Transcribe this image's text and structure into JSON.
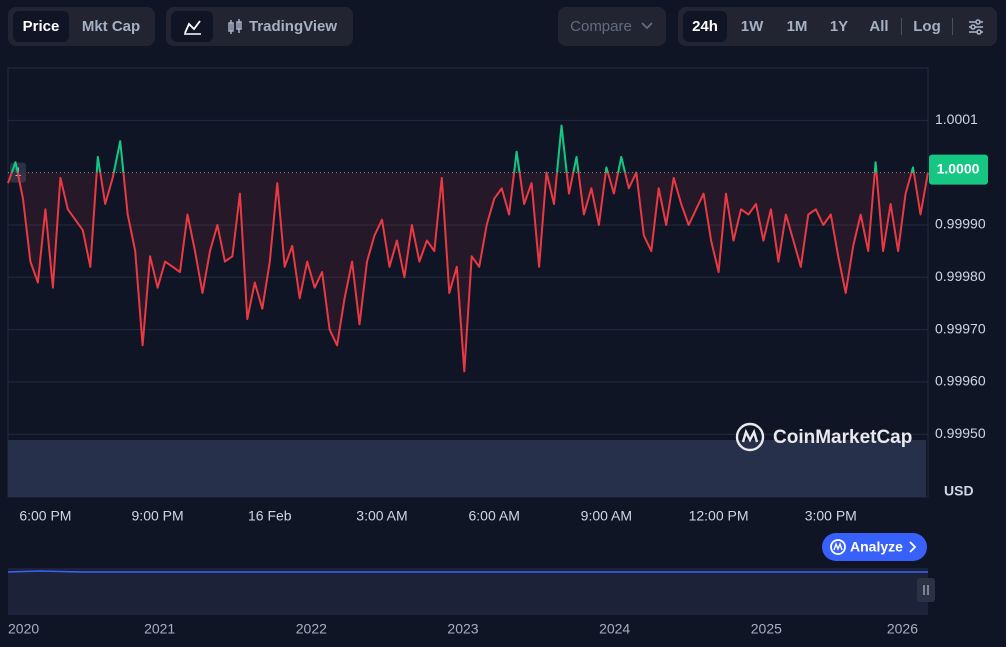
{
  "toolbar": {
    "metrics": [
      "Price",
      "Mkt Cap"
    ],
    "chart_mode": "TradingView",
    "compare": "Compare",
    "ranges": [
      "24h",
      "1W",
      "1M",
      "1Y",
      "All"
    ],
    "log": "Log"
  },
  "chart_data": {
    "type": "line",
    "values": [
      0.99998,
      1.00002,
      0.99995,
      0.99983,
      0.99979,
      0.99993,
      0.99978,
      0.99999,
      0.99993,
      0.99991,
      0.99989,
      0.99982,
      1.00003,
      0.99994,
      0.99999,
      1.00006,
      0.99992,
      0.99985,
      0.99967,
      0.99984,
      0.99978,
      0.99983,
      0.99982,
      0.99981,
      0.99992,
      0.99985,
      0.99977,
      0.99985,
      0.9999,
      0.99983,
      0.99984,
      0.99996,
      0.99972,
      0.99979,
      0.99974,
      0.99983,
      0.99998,
      0.99982,
      0.99986,
      0.99976,
      0.99983,
      0.99978,
      0.99981,
      0.9997,
      0.99967,
      0.99976,
      0.99983,
      0.99971,
      0.99983,
      0.99988,
      0.99991,
      0.99982,
      0.99987,
      0.9998,
      0.9999,
      0.99983,
      0.99987,
      0.99985,
      0.99999,
      0.99977,
      0.99982,
      0.99962,
      0.99984,
      0.99982,
      0.9999,
      0.99995,
      0.99997,
      0.99992,
      1.00004,
      0.99994,
      0.99998,
      0.99982,
      1.0,
      0.99994,
      1.00009,
      0.99996,
      1.00003,
      0.99992,
      0.99997,
      0.9999,
      1.00001,
      0.99996,
      1.00003,
      0.99997,
      1.0,
      0.99988,
      0.99985,
      0.99997,
      0.9999,
      0.99999,
      0.99994,
      0.9999,
      0.99993,
      0.99996,
      0.99987,
      0.99981,
      0.99996,
      0.99987,
      0.99993,
      0.99992,
      0.99994,
      0.99987,
      0.99993,
      0.99983,
      0.99992,
      0.99987,
      0.99982,
      0.99992,
      0.99993,
      0.9999,
      0.99992,
      0.99984,
      0.99977,
      0.99986,
      0.99992,
      0.99985,
      1.00002,
      0.99985,
      0.99994,
      0.99985,
      0.99996,
      1.00001,
      0.99992,
      1.0
    ],
    "xlim": [
      0,
      123
    ],
    "xticks": [
      {
        "value": 5,
        "label": "6:00 PM"
      },
      {
        "value": 20,
        "label": "9:00 PM"
      },
      {
        "value": 35,
        "label": "16 Feb"
      },
      {
        "value": 50,
        "label": "3:00 AM"
      },
      {
        "value": 65,
        "label": "6:00 AM"
      },
      {
        "value": 80,
        "label": "9:00 AM"
      },
      {
        "value": 95,
        "label": "12:00 PM"
      },
      {
        "value": 110,
        "label": "3:00 PM"
      }
    ],
    "ylim": [
      0.99938,
      1.0002
    ],
    "yticks": [
      1.0001,
      {
        "value": 0.9999,
        "label": "0.99990"
      },
      {
        "value": 0.9998,
        "label": "0.99980"
      },
      {
        "value": 0.9997,
        "label": "0.99970"
      },
      {
        "value": 0.9996,
        "label": "0.99960"
      },
      {
        "value": 0.9995,
        "label": "0.99950"
      }
    ],
    "y_unit": "USD",
    "current_price": {
      "value": 1,
      "label": "1.0000"
    },
    "baseline_marker": "1",
    "colors": {
      "up": "#16c784",
      "down": "#ea3943"
    },
    "grid": true
  },
  "watermark": "CoinMarketCap",
  "analyze_button": "Analyze",
  "navigator": {
    "labels": [
      "2020",
      "2021",
      "2022",
      "2023",
      "2024",
      "2025",
      "2026"
    ]
  }
}
